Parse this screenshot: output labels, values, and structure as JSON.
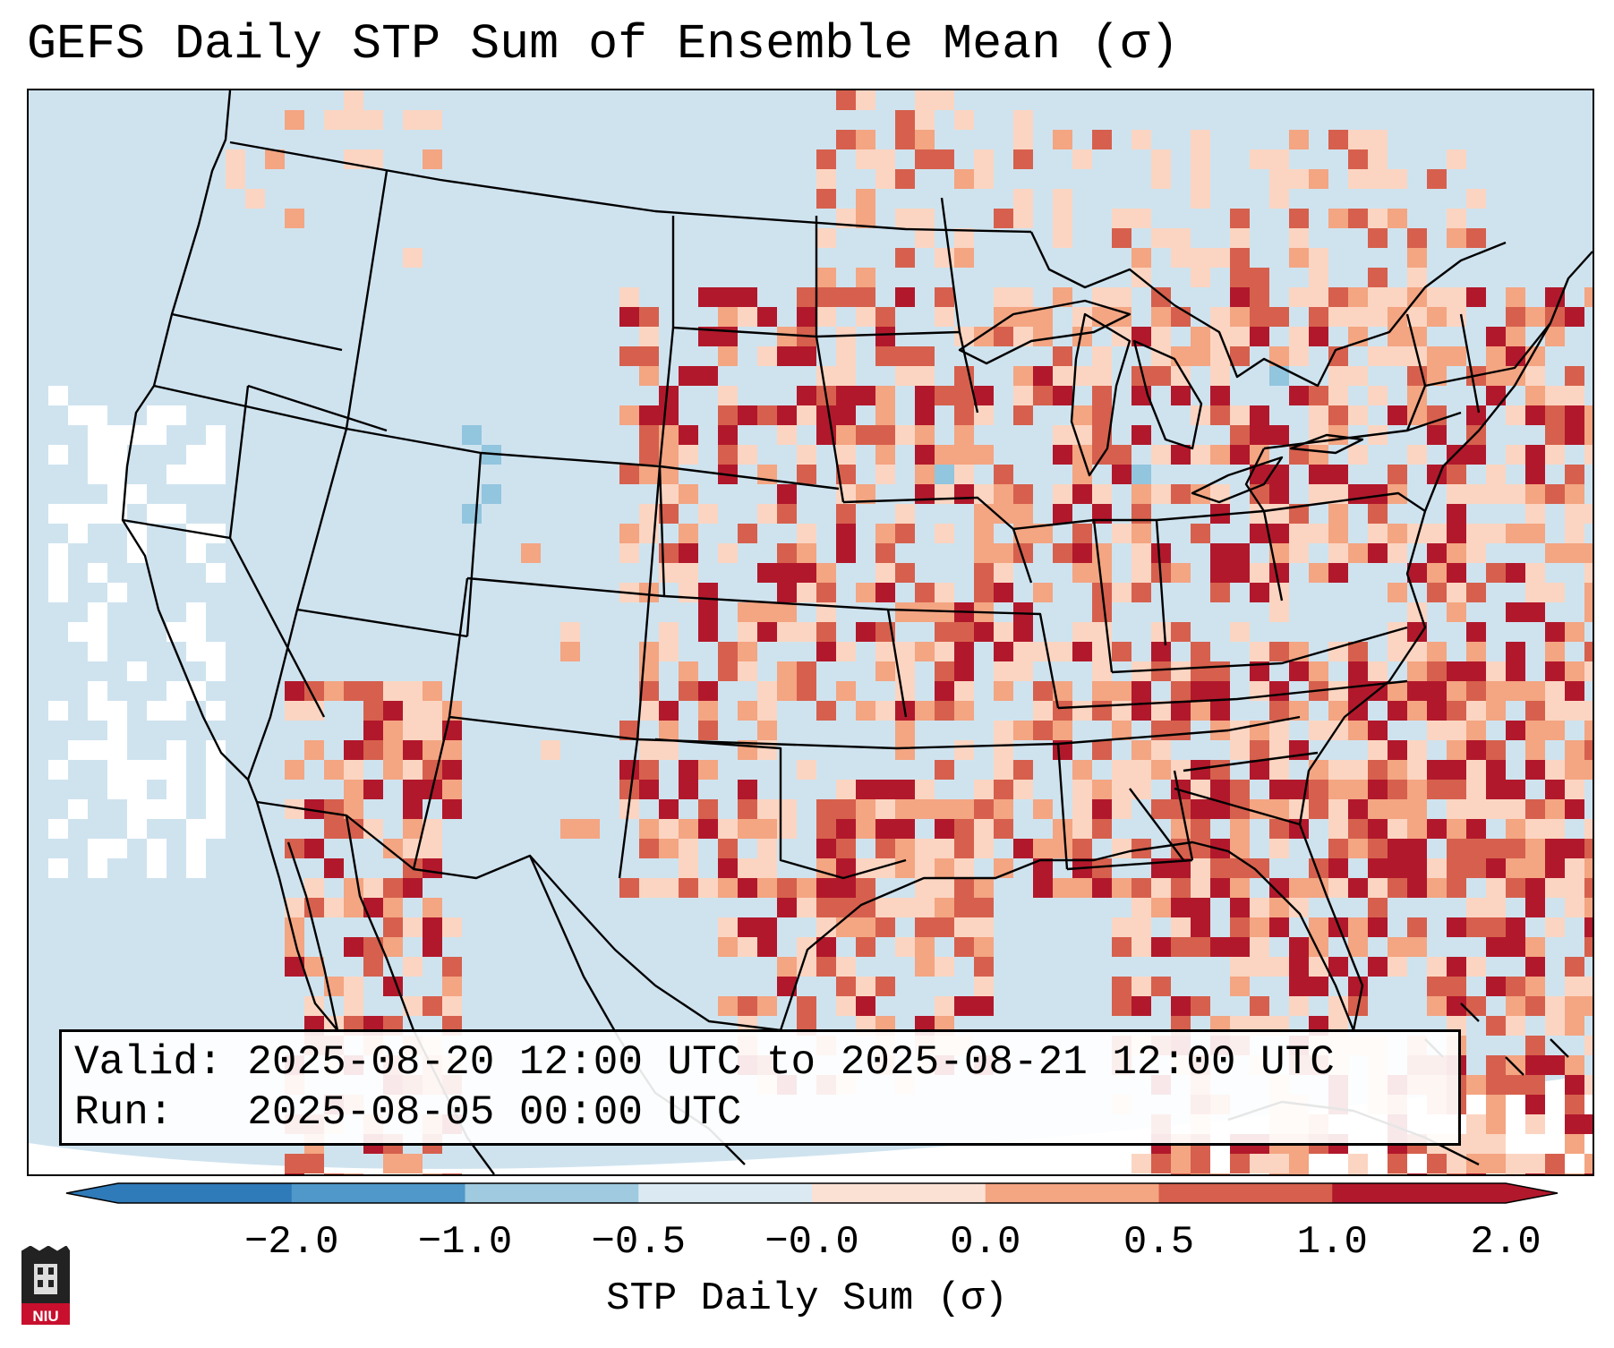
{
  "title": "GEFS Daily STP Sum of Ensemble Mean (σ)",
  "info": {
    "valid_label": "Valid:",
    "valid_value": "2025-08-20 12:00 UTC to 2025-08-21 12:00 UTC",
    "run_label": "Run:",
    "run_value": "2025-08-05 00:00 UTC"
  },
  "colorbar": {
    "label": "STP Daily Sum (σ)",
    "ticks": [
      "−2.0",
      "−1.0",
      "−0.5",
      "−0.0",
      "0.0",
      "0.5",
      "1.0",
      "2.0"
    ],
    "colors": [
      "#2f7ab8",
      "#4f98c9",
      "#9fcae0",
      "#dbeaf2",
      "#fbe1d4",
      "#f4a582",
      "#d6604d",
      "#b2182b"
    ]
  },
  "map_colors": {
    "background": "#cfe3ef",
    "light_positive": "#fbd5c2",
    "medium_positive": "#f4a582",
    "strong_positive": "#d6604d",
    "extreme_positive": "#b2182b",
    "neutral": "#ffffff",
    "negative": "#92c5de",
    "borders": "#000000"
  },
  "logo": {
    "text": "NIU",
    "icon": "niu-tower-icon"
  }
}
